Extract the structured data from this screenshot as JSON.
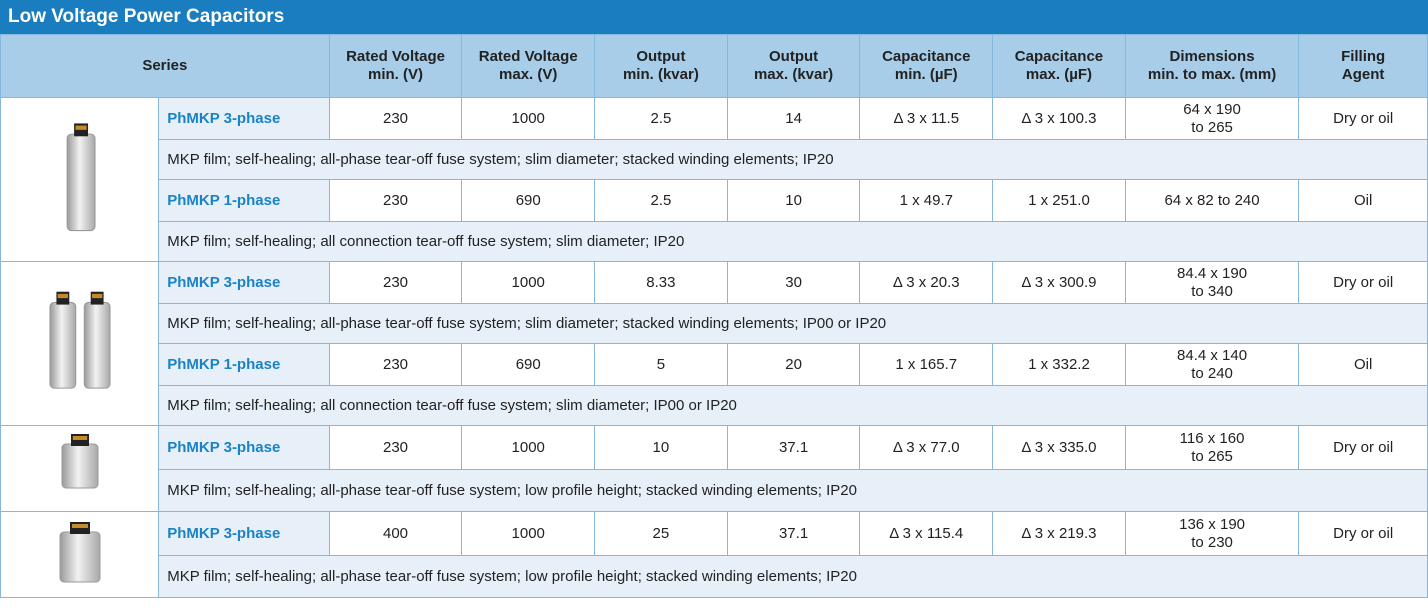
{
  "title": "Low Voltage Power Capacitors",
  "table": {
    "header": [
      [
        "Series"
      ],
      [
        "Rated Voltage",
        "min. (V)"
      ],
      [
        "Rated Voltage",
        "max. (V)"
      ],
      [
        "Output",
        "min. (kvar)"
      ],
      [
        "Output",
        "max. (kvar)"
      ],
      [
        "Capacitance",
        "min. (µF)"
      ],
      [
        "Capacitance",
        "max. (µF)"
      ],
      [
        "Dimensions",
        "min. to max. (mm)"
      ],
      [
        "Filling",
        "Agent"
      ]
    ],
    "groups": [
      {
        "rows": [
          {
            "series": "PhMKP 3-phase",
            "cells": [
              [
                "230"
              ],
              [
                "1000"
              ],
              [
                "2.5"
              ],
              [
                "14"
              ],
              [
                "Δ 3 x 11.5"
              ],
              [
                "Δ 3 x 100.3"
              ],
              [
                "64 x 190",
                "to 265"
              ],
              [
                "Dry or oil"
              ]
            ],
            "description": "MKP film; self-healing; all-phase tear-off fuse system; slim diameter; stacked winding elements; IP20"
          },
          {
            "series": "PhMKP 1-phase",
            "cells": [
              [
                "230"
              ],
              [
                "690"
              ],
              [
                "2.5"
              ],
              [
                "10"
              ],
              [
                "1 x 49.7"
              ],
              [
                "1 x 251.0"
              ],
              [
                "64 x 82 to 240"
              ],
              [
                "Oil"
              ]
            ],
            "description": "MKP film; self-healing; all connection tear-off fuse system; slim diameter; IP20"
          }
        ]
      },
      {
        "rows": [
          {
            "series": "PhMKP 3-phase",
            "cells": [
              [
                "230"
              ],
              [
                "1000"
              ],
              [
                "8.33"
              ],
              [
                "30"
              ],
              [
                "Δ 3 x 20.3"
              ],
              [
                "Δ 3 x 300.9"
              ],
              [
                "84.4 x 190",
                "to 340"
              ],
              [
                "Dry or oil"
              ]
            ],
            "description": "MKP film; self-healing; all-phase tear-off fuse system; slim diameter; stacked winding elements; IP00 or IP20"
          },
          {
            "series": "PhMKP 1-phase",
            "cells": [
              [
                "230"
              ],
              [
                "690"
              ],
              [
                "5"
              ],
              [
                "20"
              ],
              [
                "1 x 165.7"
              ],
              [
                "1 x 332.2"
              ],
              [
                "84.4 x 140",
                "to 240"
              ],
              [
                "Oil"
              ]
            ],
            "description": "MKP film; self-healing; all connection tear-off fuse system; slim diameter; IP00 or IP20"
          }
        ]
      },
      {
        "rows": [
          {
            "series": "PhMKP 3-phase",
            "cells": [
              [
                "230"
              ],
              [
                "1000"
              ],
              [
                "10"
              ],
              [
                "37.1"
              ],
              [
                "Δ 3 x 77.0"
              ],
              [
                "Δ 3 x 335.0"
              ],
              [
                "116 x 160",
                "to 265"
              ],
              [
                "Dry or oil"
              ]
            ],
            "description": "MKP film; self-healing; all-phase tear-off fuse system; low profile height; stacked winding elements; IP20"
          }
        ]
      },
      {
        "rows": [
          {
            "series": "PhMKP 3-phase",
            "cells": [
              [
                "400"
              ],
              [
                "1000"
              ],
              [
                "25"
              ],
              [
                "37.1"
              ],
              [
                "Δ 3 x 115.4"
              ],
              [
                "Δ 3 x 219.3"
              ],
              [
                "136 x 190",
                "to 230"
              ],
              [
                "Dry or oil"
              ]
            ],
            "description": "MKP film; self-healing; all-phase tear-off fuse system; low profile height; stacked winding elements; IP20"
          }
        ]
      }
    ]
  }
}
